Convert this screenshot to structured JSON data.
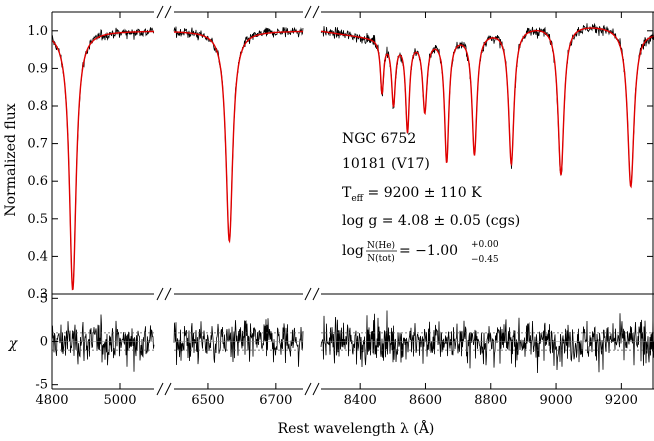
{
  "chart_data": {
    "type": "line",
    "spectrum_panel": {
      "ylabel": "Normalized flux",
      "ylim": [
        0.3,
        1.05
      ],
      "yticks": [
        "0.3",
        "0.4",
        "0.5",
        "0.6",
        "0.7",
        "0.8",
        "0.9",
        "1.0"
      ],
      "series": [
        {
          "role": "observed",
          "color": "#000000"
        },
        {
          "role": "model",
          "color": "#e00000"
        }
      ],
      "absorption_lines": [
        {
          "center": 4861,
          "depth": 0.31,
          "width": 12
        },
        {
          "center": 6563,
          "depth": 0.44,
          "width": 12
        },
        {
          "center": 8467,
          "depth": 0.86,
          "width": 6
        },
        {
          "center": 8502,
          "depth": 0.83,
          "width": 7
        },
        {
          "center": 8545,
          "depth": 0.76,
          "width": 7
        },
        {
          "center": 8598,
          "depth": 0.81,
          "width": 8
        },
        {
          "center": 8665,
          "depth": 0.67,
          "width": 8
        },
        {
          "center": 8750,
          "depth": 0.68,
          "width": 9
        },
        {
          "center": 8863,
          "depth": 0.64,
          "width": 10
        },
        {
          "center": 9015,
          "depth": 0.6,
          "width": 11
        },
        {
          "center": 9229,
          "depth": 0.58,
          "width": 12
        }
      ]
    },
    "residual_panel": {
      "ylabel": "χ",
      "ylim": [
        -5.5,
        5.5
      ],
      "yticks": [
        "5",
        "0",
        "-5"
      ],
      "reference_lines": [
        -1,
        1
      ],
      "color": "#000000"
    },
    "segments": [
      {
        "range": [
          4800,
          5100
        ],
        "ticks": [
          "4800",
          "5000"
        ],
        "tick_values": [
          4800,
          5000
        ]
      },
      {
        "range": [
          6400,
          6780
        ],
        "ticks": [
          "6500",
          "6700"
        ],
        "tick_values": [
          6500,
          6700
        ]
      },
      {
        "range": [
          8280,
          9300
        ],
        "ticks": [
          "8400",
          "8600",
          "8800",
          "9000",
          "9200"
        ],
        "tick_values": [
          8400,
          8600,
          8800,
          9000,
          9200
        ]
      }
    ],
    "xlabel": "Rest wavelength λ (Å)",
    "annotations": {
      "cluster": "NGC 6752",
      "star": "10181 (V17)",
      "teff_label": "T",
      "teff_sub": "eff",
      "teff_value": " = 9200 ± 110 K",
      "logg_label": "log g = 4.08 ± 0.05 (cgs)",
      "abund_prefix": "log",
      "abund_num": "N(He)",
      "abund_den": "N(tot)",
      "abund_value": " = −1.00",
      "abund_plus": "+0.00",
      "abund_minus": "−0.45"
    }
  }
}
